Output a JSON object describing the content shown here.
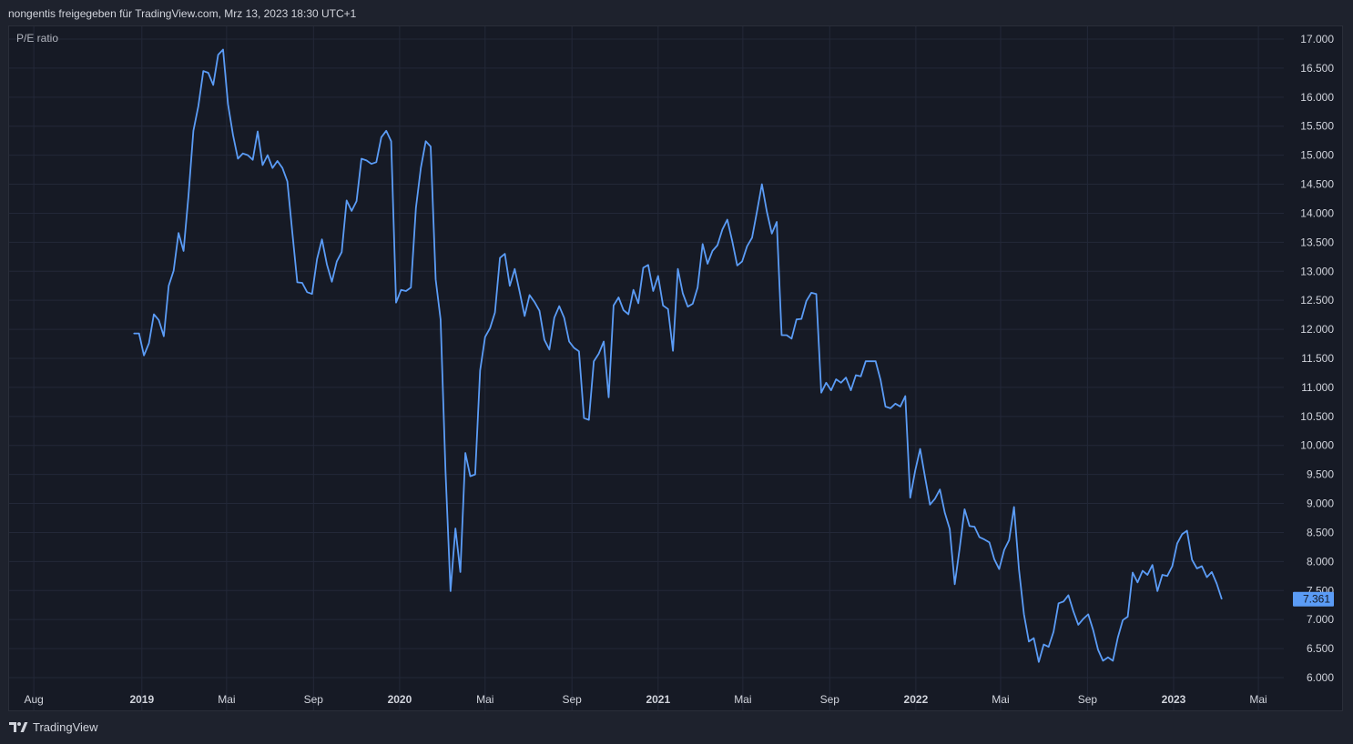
{
  "header": {
    "text": "nongentis freigegeben für TradingView.com, Mrz 13, 2023 18:30 UTC+1"
  },
  "footer": {
    "brand": "TradingView",
    "icon": "tradingview-logo-icon"
  },
  "colors": {
    "line": "#5b9cf6",
    "price_tag_bg": "#5b9cf6",
    "price_tag_text": "#131722",
    "grid": "#232838",
    "axis_text": "#d1d4dc"
  },
  "chart_data": {
    "type": "line",
    "series": [
      {
        "name": "P/E ratio",
        "x": [
          "2018-12-21",
          "2018-12-28",
          "2019-01-04",
          "2019-01-11",
          "2019-01-18",
          "2019-01-25",
          "2019-02-01",
          "2019-02-08",
          "2019-02-15",
          "2019-02-22",
          "2019-03-01",
          "2019-03-08",
          "2019-03-15",
          "2019-03-22",
          "2019-03-29",
          "2019-04-05",
          "2019-04-12",
          "2019-04-19",
          "2019-04-26",
          "2019-05-03",
          "2019-05-10",
          "2019-05-17",
          "2019-05-24",
          "2019-05-31",
          "2019-06-07",
          "2019-06-14",
          "2019-06-21",
          "2019-06-28",
          "2019-07-05",
          "2019-07-12",
          "2019-07-19",
          "2019-07-26",
          "2019-08-02",
          "2019-08-09",
          "2019-08-16",
          "2019-08-23",
          "2019-08-30",
          "2019-09-06",
          "2019-09-13",
          "2019-09-20",
          "2019-09-27",
          "2019-10-04",
          "2019-10-11",
          "2019-10-18",
          "2019-10-25",
          "2019-11-01",
          "2019-11-08",
          "2019-11-15",
          "2019-11-22",
          "2019-11-29",
          "2019-12-06",
          "2019-12-13",
          "2019-12-20",
          "2019-12-27",
          "2020-01-03",
          "2020-01-10",
          "2020-01-17",
          "2020-01-24",
          "2020-01-31",
          "2020-02-07",
          "2020-02-14",
          "2020-02-21",
          "2020-02-28",
          "2020-03-06",
          "2020-03-13",
          "2020-03-20",
          "2020-03-27",
          "2020-04-03",
          "2020-04-10",
          "2020-04-17",
          "2020-04-24",
          "2020-05-01",
          "2020-05-08",
          "2020-05-15",
          "2020-05-22",
          "2020-05-29",
          "2020-06-05",
          "2020-06-12",
          "2020-06-19",
          "2020-06-26",
          "2020-07-03",
          "2020-07-10",
          "2020-07-17",
          "2020-07-24",
          "2020-07-31",
          "2020-08-07",
          "2020-08-14",
          "2020-08-21",
          "2020-08-28",
          "2020-09-04",
          "2020-09-11",
          "2020-09-18",
          "2020-09-25",
          "2020-10-02",
          "2020-10-09",
          "2020-10-16",
          "2020-10-23",
          "2020-10-30",
          "2020-11-06",
          "2020-11-13",
          "2020-11-20",
          "2020-11-27",
          "2020-12-04",
          "2020-12-11",
          "2020-12-18",
          "2020-12-25",
          "2021-01-01",
          "2021-01-08",
          "2021-01-15",
          "2021-01-22",
          "2021-01-29",
          "2021-02-05",
          "2021-02-12",
          "2021-02-19",
          "2021-02-26",
          "2021-03-05",
          "2021-03-12",
          "2021-03-19",
          "2021-03-26",
          "2021-04-02",
          "2021-04-09",
          "2021-04-16",
          "2021-04-23",
          "2021-04-30",
          "2021-05-07",
          "2021-05-14",
          "2021-05-21",
          "2021-05-28",
          "2021-06-04",
          "2021-06-11",
          "2021-06-18",
          "2021-06-25",
          "2021-07-02",
          "2021-07-09",
          "2021-07-16",
          "2021-07-23",
          "2021-07-30",
          "2021-08-06",
          "2021-08-13",
          "2021-08-20",
          "2021-08-27",
          "2021-09-03",
          "2021-09-10",
          "2021-09-17",
          "2021-09-24",
          "2021-10-01",
          "2021-10-08",
          "2021-10-15",
          "2021-10-22",
          "2021-10-29",
          "2021-11-05",
          "2021-11-12",
          "2021-11-19",
          "2021-11-26",
          "2021-12-03",
          "2021-12-10",
          "2021-12-17",
          "2021-12-24",
          "2021-12-31",
          "2022-01-07",
          "2022-01-14",
          "2022-01-21",
          "2022-01-28",
          "2022-02-04",
          "2022-02-11",
          "2022-02-18",
          "2022-02-25",
          "2022-03-04",
          "2022-03-11",
          "2022-03-18",
          "2022-03-25",
          "2022-04-01",
          "2022-04-08",
          "2022-04-15",
          "2022-04-22",
          "2022-04-29",
          "2022-05-06",
          "2022-05-13",
          "2022-05-20",
          "2022-05-27",
          "2022-06-03",
          "2022-06-10",
          "2022-06-17",
          "2022-06-24",
          "2022-07-01",
          "2022-07-08",
          "2022-07-15",
          "2022-07-22",
          "2022-07-29",
          "2022-08-05",
          "2022-08-12",
          "2022-08-19",
          "2022-08-26",
          "2022-09-02",
          "2022-09-09",
          "2022-09-16",
          "2022-09-23",
          "2022-09-30",
          "2022-10-07",
          "2022-10-14",
          "2022-10-21",
          "2022-10-28",
          "2022-11-04",
          "2022-11-11",
          "2022-11-18",
          "2022-11-25",
          "2022-12-02",
          "2022-12-09",
          "2022-12-16",
          "2022-12-23",
          "2022-12-30",
          "2023-01-06",
          "2023-01-13",
          "2023-01-20",
          "2023-01-27",
          "2023-02-03",
          "2023-02-10",
          "2023-02-17",
          "2023-02-24",
          "2023-03-03",
          "2023-03-10"
        ],
        "values": [
          11.93,
          11.93,
          11.55,
          11.76,
          12.26,
          12.16,
          11.88,
          12.75,
          13.01,
          13.66,
          13.35,
          14.3,
          15.42,
          15.85,
          16.45,
          16.42,
          16.21,
          16.73,
          16.82,
          15.88,
          15.35,
          14.94,
          15.03,
          15.0,
          14.92,
          15.41,
          14.83,
          15.0,
          14.78,
          14.9,
          14.78,
          14.55,
          13.68,
          12.81,
          12.8,
          12.64,
          12.61,
          13.21,
          13.55,
          13.12,
          12.82,
          13.17,
          13.33,
          14.22,
          14.04,
          14.21,
          14.94,
          14.91,
          14.85,
          14.88,
          15.31,
          15.42,
          15.24,
          12.46,
          12.68,
          12.66,
          12.72,
          14.09,
          14.78,
          15.24,
          15.15,
          12.86,
          12.17,
          9.56,
          7.49,
          8.57,
          7.82,
          9.87,
          9.47,
          9.5,
          11.29,
          11.87,
          12.02,
          12.29,
          13.23,
          13.3,
          12.75,
          13.04,
          12.64,
          12.23,
          12.59,
          12.47,
          12.32,
          11.82,
          11.65,
          12.2,
          12.4,
          12.2,
          11.79,
          11.68,
          11.62,
          10.47,
          10.44,
          11.45,
          11.58,
          11.79,
          10.83,
          12.41,
          12.55,
          12.33,
          12.26,
          12.68,
          12.45,
          13.06,
          13.11,
          12.66,
          12.92,
          12.41,
          12.35,
          11.63,
          13.04,
          12.62,
          12.39,
          12.44,
          12.72,
          13.47,
          13.13,
          13.35,
          13.45,
          13.72,
          13.89,
          13.52,
          13.1,
          13.17,
          13.43,
          13.58,
          14.03,
          14.5,
          14.03,
          13.65,
          13.85,
          11.9,
          11.9,
          11.84,
          12.17,
          12.18,
          12.49,
          12.63,
          12.61,
          10.91,
          11.08,
          10.95,
          11.14,
          11.08,
          11.17,
          10.95,
          11.21,
          11.19,
          11.45,
          11.45,
          11.45,
          11.13,
          10.67,
          10.64,
          10.72,
          10.67,
          10.85,
          9.1,
          9.56,
          9.94,
          9.45,
          8.98,
          9.08,
          9.24,
          8.84,
          8.56,
          7.61,
          8.23,
          8.9,
          8.61,
          8.6,
          8.42,
          8.38,
          8.33,
          8.04,
          7.87,
          8.2,
          8.37,
          8.94,
          7.87,
          7.09,
          6.62,
          6.68,
          6.27,
          6.57,
          6.53,
          6.79,
          7.28,
          7.31,
          7.42,
          7.14,
          6.91,
          7.01,
          7.09,
          6.82,
          6.48,
          6.29,
          6.35,
          6.29,
          6.69,
          6.99,
          7.05,
          7.81,
          7.64,
          7.84,
          7.77,
          7.94,
          7.49,
          7.77,
          7.75,
          7.92,
          8.31,
          8.47,
          8.53,
          8.03,
          7.88,
          7.92,
          7.73,
          7.82,
          7.62,
          7.36
        ]
      }
    ],
    "y_ticks": [
      "6.000",
      "6.500",
      "7.000",
      "7.500",
      "8.000",
      "8.500",
      "9.000",
      "9.500",
      "10.000",
      "10.500",
      "11.000",
      "11.500",
      "12.000",
      "12.500",
      "13.000",
      "13.500",
      "14.000",
      "14.500",
      "15.000",
      "15.500",
      "16.000",
      "16.500",
      "17.000"
    ],
    "ylim": [
      6.0,
      17.0
    ],
    "xlim": [
      "2018-06-27",
      "2023-06-06"
    ],
    "x_ticks": [
      {
        "date": "2018-08-01",
        "label": "Aug",
        "bold": false
      },
      {
        "date": "2019-01-01",
        "label": "2019",
        "bold": true
      },
      {
        "date": "2019-05-01",
        "label": "Mai",
        "bold": false
      },
      {
        "date": "2019-09-01",
        "label": "Sep",
        "bold": false
      },
      {
        "date": "2020-01-01",
        "label": "2020",
        "bold": true
      },
      {
        "date": "2020-05-01",
        "label": "Mai",
        "bold": false
      },
      {
        "date": "2020-09-01",
        "label": "Sep",
        "bold": false
      },
      {
        "date": "2021-01-01",
        "label": "2021",
        "bold": true
      },
      {
        "date": "2021-05-01",
        "label": "Mai",
        "bold": false
      },
      {
        "date": "2021-09-01",
        "label": "Sep",
        "bold": false
      },
      {
        "date": "2022-01-01",
        "label": "2022",
        "bold": true
      },
      {
        "date": "2022-05-01",
        "label": "Mai",
        "bold": false
      },
      {
        "date": "2022-09-01",
        "label": "Sep",
        "bold": false
      },
      {
        "date": "2023-01-01",
        "label": "2023",
        "bold": true
      },
      {
        "date": "2023-05-01",
        "label": "Mai",
        "bold": false
      }
    ],
    "last_value_label": "7.361",
    "grid": true,
    "legend_position": "top-left"
  }
}
